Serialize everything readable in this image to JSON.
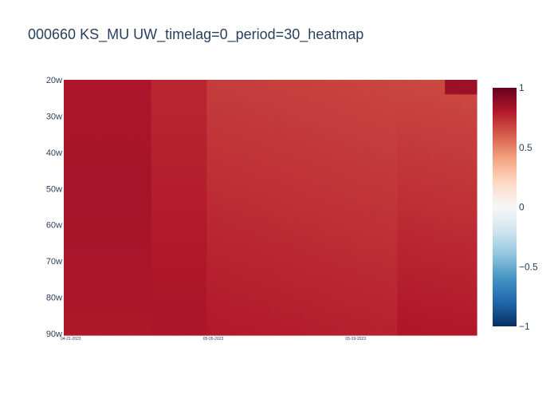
{
  "chart_data": {
    "type": "heatmap",
    "title": "000660 KS_MU UW_timelag=0_period=30_heatmap",
    "xlabel": "",
    "ylabel": "",
    "x_tick_labels": [
      "04-21-2023",
      "05-05-2023",
      "05-19-2023"
    ],
    "y_categories": [
      "20w",
      "30w",
      "40w",
      "50w",
      "60w",
      "70w",
      "80w",
      "90w"
    ],
    "colorscale": "RdBu reversed (blue = -1, white = 0, red = 1)",
    "zmin": -1,
    "zmax": 1,
    "colorbar_ticks": [
      "1",
      "0.5",
      "0",
      "−0.5",
      "−1"
    ],
    "value_range_note_values": [
      0.62,
      0.85
    ],
    "colors": {
      "low": "#053061",
      "mid": "#f7f7f7",
      "high": "#67001f"
    }
  }
}
